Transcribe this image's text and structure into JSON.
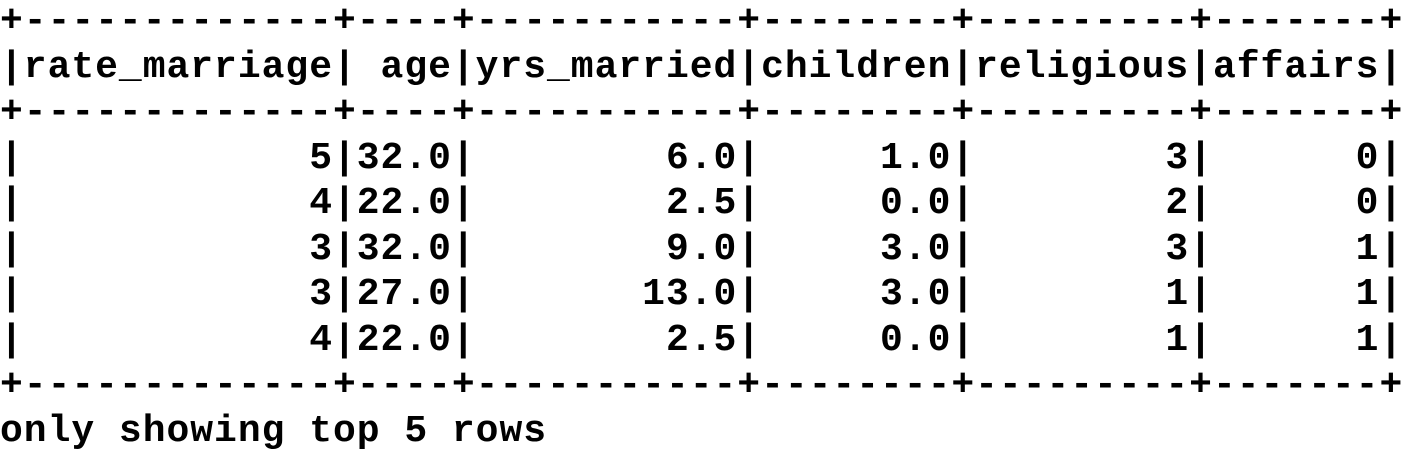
{
  "table": {
    "columns": [
      {
        "name": "rate_marriage",
        "align": "right"
      },
      {
        "name": "age",
        "align": "right"
      },
      {
        "name": "yrs_married",
        "align": "right"
      },
      {
        "name": "children",
        "align": "right"
      },
      {
        "name": "religious",
        "align": "right"
      },
      {
        "name": "affairs",
        "align": "right"
      }
    ],
    "rows": [
      [
        "5",
        "32.0",
        "6.0",
        "1.0",
        "3",
        "0"
      ],
      [
        "4",
        "22.0",
        "2.5",
        "0.0",
        "2",
        "0"
      ],
      [
        "3",
        "32.0",
        "9.0",
        "3.0",
        "3",
        "1"
      ],
      [
        "3",
        "27.0",
        "13.0",
        "3.0",
        "1",
        "1"
      ],
      [
        "4",
        "22.0",
        "2.5",
        "0.0",
        "1",
        "1"
      ]
    ]
  },
  "footer": "only showing top 5 rows"
}
